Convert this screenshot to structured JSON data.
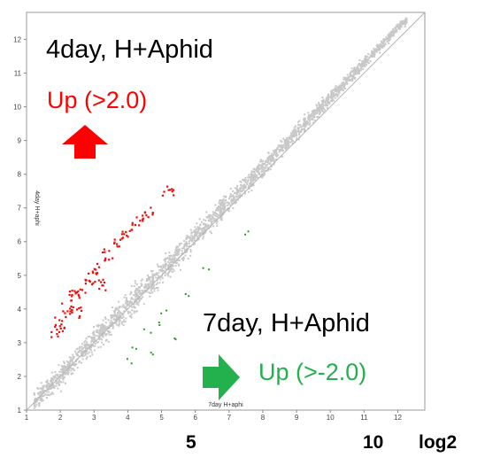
{
  "colors": {
    "background_point": "#c8c8c8",
    "up_point": "#e8100c",
    "down_point": "#2e9a2e",
    "diagonal": "#b4b4b4",
    "up_text": "#ff0000",
    "down_text": "#22b14c",
    "up_arrow": "#ff0000",
    "down_arrow": "#22b14c"
  },
  "annotations": {
    "title_up": "4day,  H+Aphid",
    "up_label": "Up (>2.0)",
    "title_down": "7day,  H+Aphid",
    "down_label": "Up (>-2.0)",
    "bottom_5": "5",
    "bottom_10": "10",
    "bottom_log2": "log2"
  },
  "icons": {
    "up_arrow": "arrow-up-icon",
    "right_arrow": "arrow-right-icon"
  },
  "chart_data": {
    "type": "scatter",
    "xlabel": "7day H+aphi",
    "ylabel": "4day H+aphi",
    "xlim": [
      1,
      12.8
    ],
    "ylim": [
      1,
      12.8
    ],
    "x_ticks": [
      1,
      2,
      3,
      4,
      5,
      6,
      7,
      8,
      9,
      10,
      11,
      12
    ],
    "y_ticks": [
      1,
      2,
      3,
      4,
      5,
      6,
      7,
      8,
      9,
      10,
      11,
      12
    ],
    "grid": false,
    "diagonal": [
      [
        1,
        1
      ],
      [
        12.8,
        12.8
      ]
    ],
    "series": [
      {
        "role": "background",
        "values": [
          [
            1.5,
            1.7
          ],
          [
            2,
            2.1
          ],
          [
            2.5,
            2.6
          ],
          [
            3,
            3
          ],
          [
            3.5,
            3.4
          ],
          [
            4,
            4.1
          ],
          [
            4.5,
            4.4
          ],
          [
            5,
            5.1
          ],
          [
            5.5,
            5.6
          ],
          [
            6,
            6
          ],
          [
            6.5,
            6.6
          ],
          [
            7,
            7.1
          ],
          [
            7.5,
            7.6
          ],
          [
            8,
            8.2
          ],
          [
            8.5,
            8.6
          ],
          [
            9,
            9.2
          ],
          [
            9.5,
            9.6
          ],
          [
            10,
            10.2
          ],
          [
            10.5,
            10.7
          ],
          [
            11,
            11.3
          ],
          [
            11.5,
            11.8
          ],
          [
            12,
            12.3
          ]
        ]
      },
      {
        "role": "up",
        "values": [
          [
            1.9,
            3.3
          ],
          [
            2.2,
            4
          ],
          [
            2.4,
            4.4
          ],
          [
            2.6,
            4.5
          ],
          [
            2.9,
            4.9
          ],
          [
            3.1,
            5.2
          ],
          [
            3.4,
            5.6
          ],
          [
            3.7,
            6
          ],
          [
            4,
            6.3
          ],
          [
            4.3,
            6.6
          ],
          [
            4.6,
            6.9
          ],
          [
            5.2,
            7.5
          ],
          [
            2,
            3.6
          ],
          [
            2.5,
            3.9
          ],
          [
            3.2,
            4.7
          ]
        ]
      },
      {
        "role": "down",
        "values": [
          [
            4.2,
            2.9
          ],
          [
            4.6,
            3.4
          ],
          [
            4.8,
            2.7
          ],
          [
            5,
            3.6
          ],
          [
            5.1,
            3.9
          ],
          [
            5.8,
            4.5
          ],
          [
            6.3,
            5.2
          ],
          [
            7.5,
            6.2
          ],
          [
            4,
            2.5
          ],
          [
            5.3,
            3.2
          ]
        ]
      }
    ]
  }
}
